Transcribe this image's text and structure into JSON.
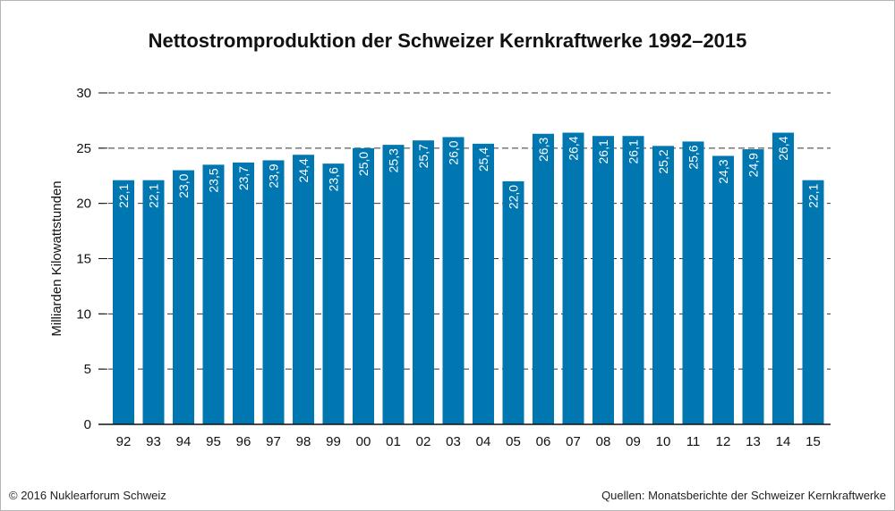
{
  "title": "Nettostromproduktion der Schweizer Kernkraftwerke 1992–2015",
  "footer": {
    "copyright": "© 2016 Nuklearforum Schweiz",
    "source": "Quellen: Monatsberichte der Schweizer Kernkraftwerke"
  },
  "colors": {
    "bar": "#0077b0",
    "bar_label": "#ffffff",
    "axis": "#111111",
    "grid": "#333333"
  },
  "chart_data": {
    "type": "bar",
    "title": "Nettostromproduktion der Schweizer Kernkraftwerke 1992–2015",
    "xlabel": "",
    "ylabel": "Milliarden Kilowattstunden",
    "ylim": [
      0,
      30
    ],
    "yticks": [
      0,
      5,
      10,
      15,
      20,
      25,
      30
    ],
    "grid": "dashed horizontal",
    "categories": [
      "92",
      "93",
      "94",
      "95",
      "96",
      "97",
      "98",
      "99",
      "00",
      "01",
      "02",
      "03",
      "04",
      "05",
      "06",
      "07",
      "08",
      "09",
      "10",
      "11",
      "12",
      "13",
      "14",
      "15"
    ],
    "values": [
      22.1,
      22.1,
      23.0,
      23.5,
      23.7,
      23.9,
      24.4,
      23.6,
      25.0,
      25.3,
      25.7,
      26.0,
      25.4,
      22.0,
      26.3,
      26.4,
      26.1,
      26.1,
      25.2,
      25.6,
      24.3,
      24.9,
      26.4,
      22.1
    ],
    "value_labels": [
      "22,1",
      "22,1",
      "23,0",
      "23,5",
      "23,7",
      "23,9",
      "24,4",
      "23,6",
      "25,0",
      "25,3",
      "25,7",
      "26,0",
      "25,4",
      "22,0",
      "26,3",
      "26,4",
      "26,1",
      "26,1",
      "25,2",
      "25,6",
      "24,3",
      "24,9",
      "26,4",
      "22,1"
    ]
  }
}
